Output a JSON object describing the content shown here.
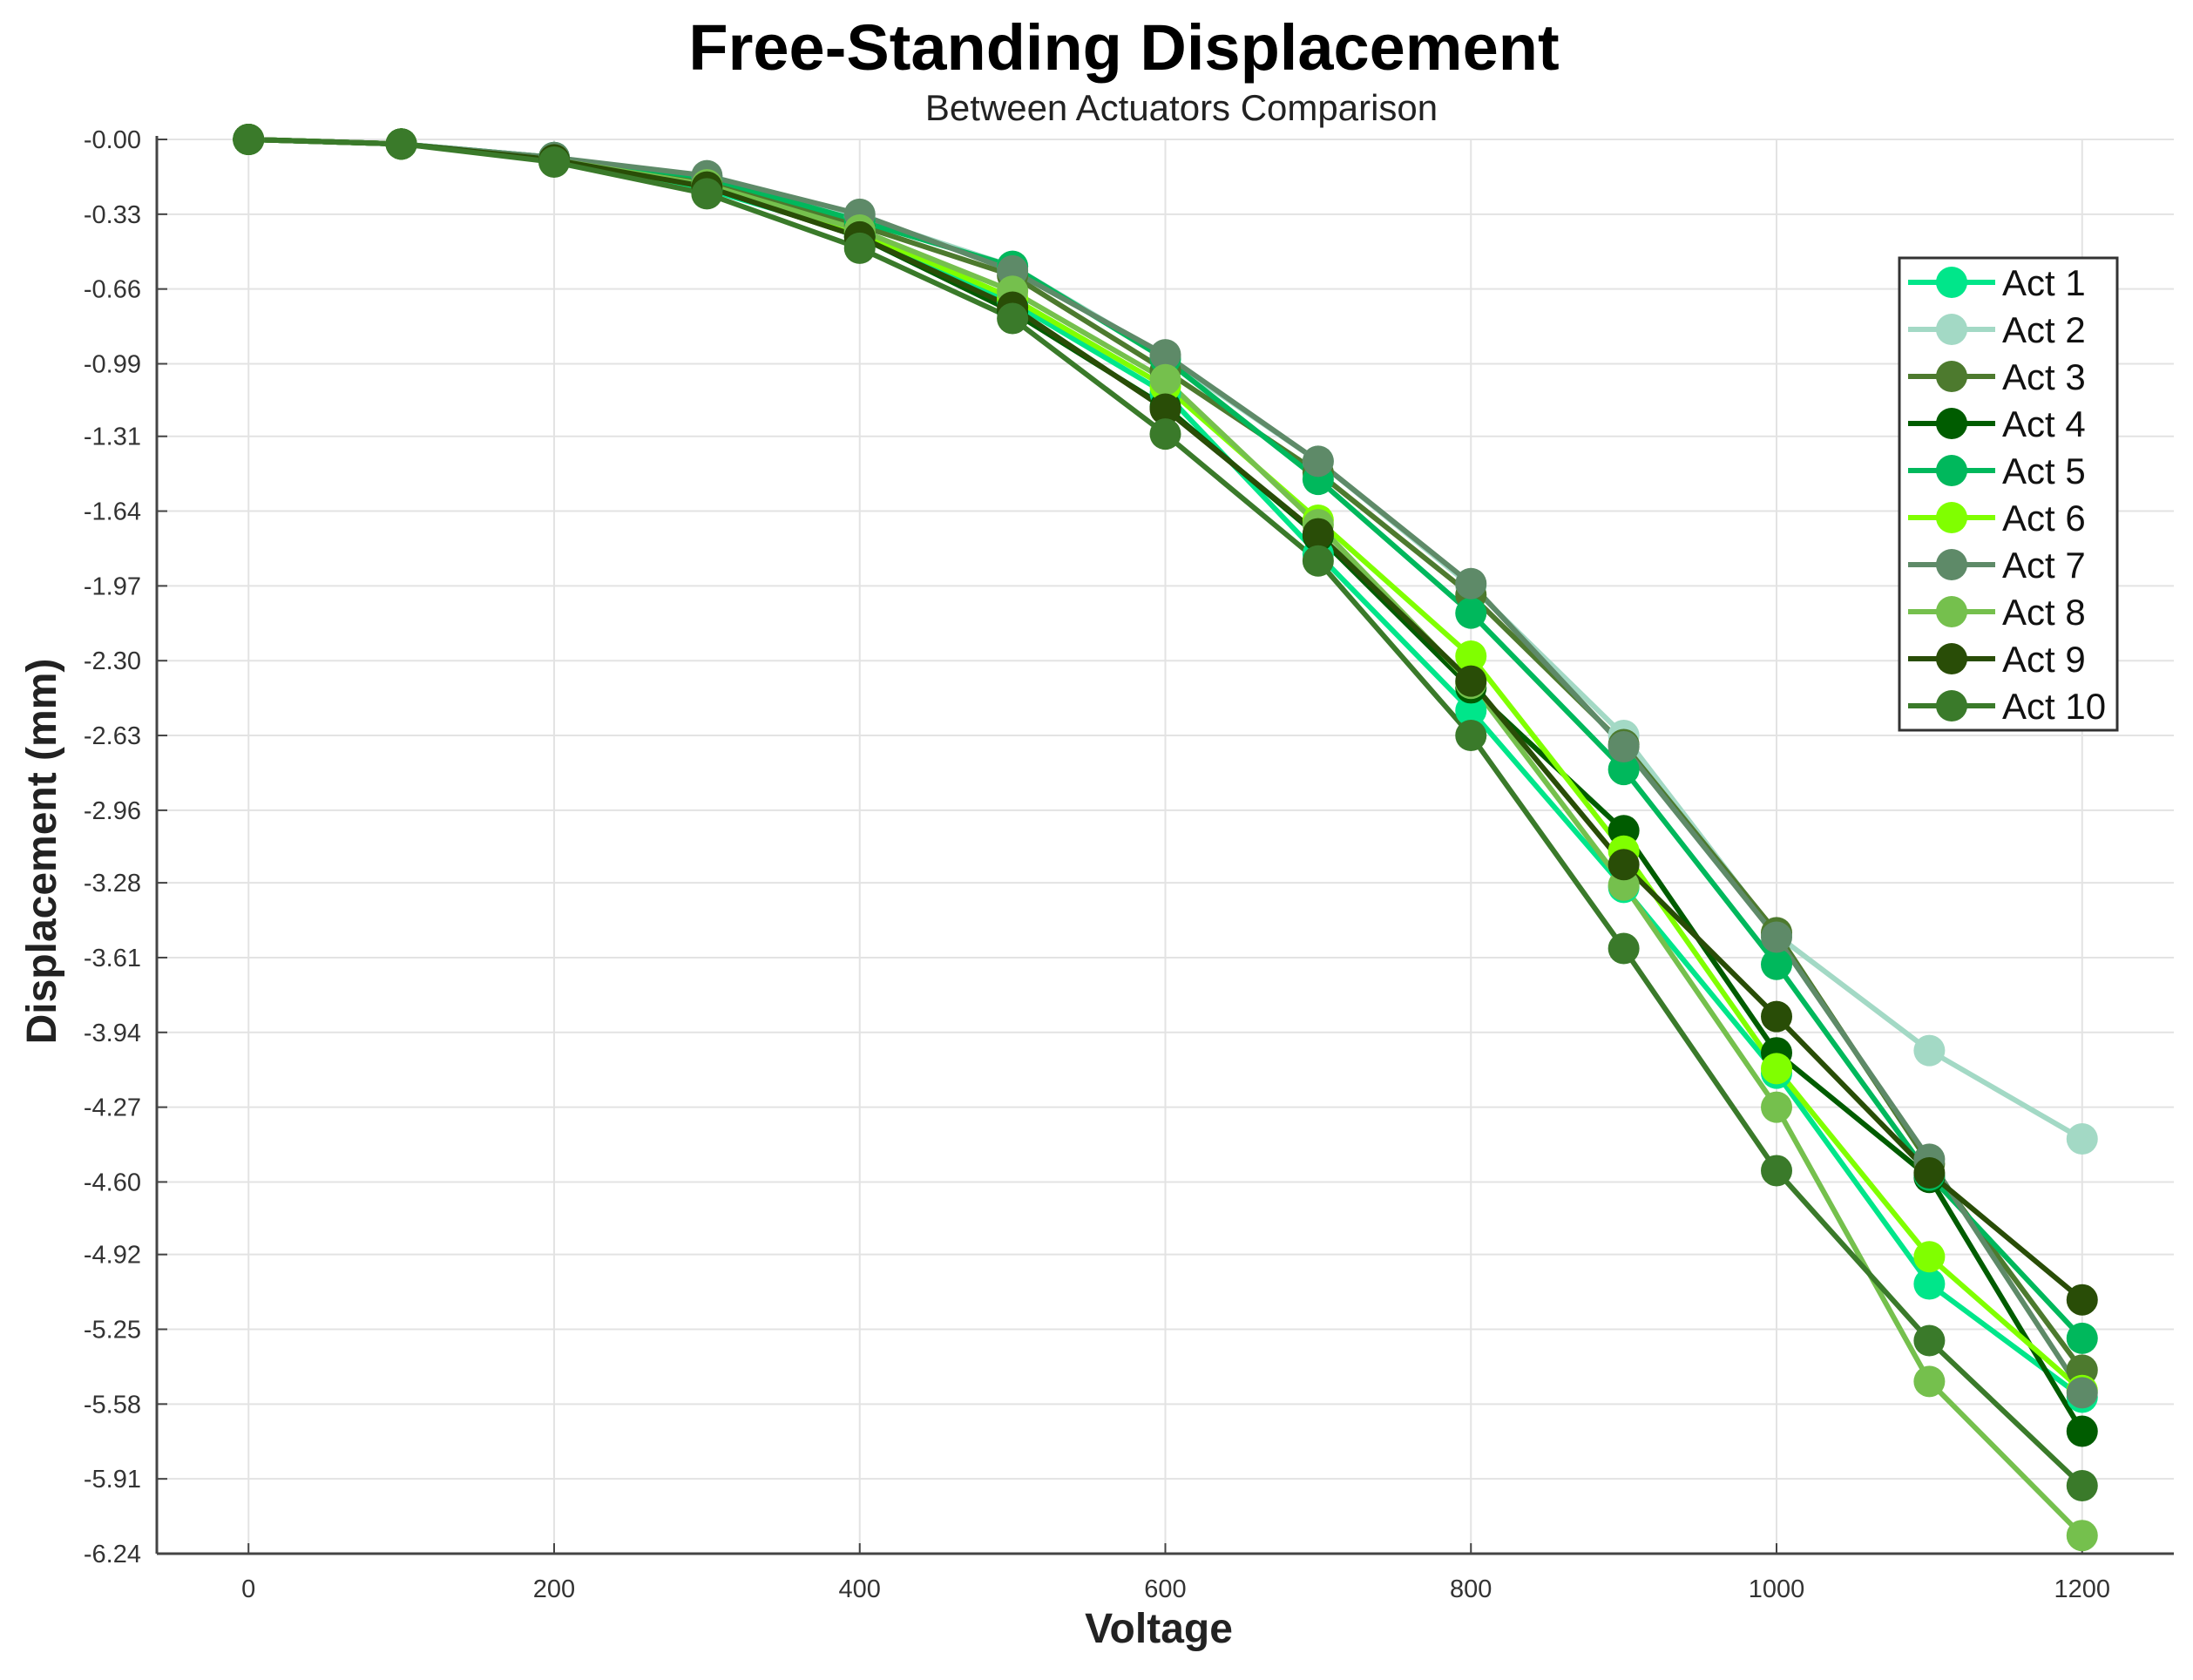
{
  "chart_data": {
    "type": "line",
    "title": "Free-Standing Displacement",
    "subtitle": "Between Actuators Comparison",
    "xlabel": "Voltage",
    "ylabel": "Displacement (mm)",
    "xlim": [
      -60,
      1260
    ],
    "ylim": [
      -6.24,
      0
    ],
    "xticks": [
      0,
      200,
      400,
      600,
      800,
      1000,
      1200
    ],
    "xtick_labels": [
      "0",
      "200",
      "400",
      "600",
      "800",
      "1000",
      "1200"
    ],
    "yticks": [
      -0.0,
      -0.33,
      -0.66,
      -0.99,
      -1.31,
      -1.64,
      -1.97,
      -2.3,
      -2.63,
      -2.96,
      -3.28,
      -3.61,
      -3.94,
      -4.27,
      -4.6,
      -4.92,
      -5.25,
      -5.58,
      -5.91,
      -6.24
    ],
    "ytick_labels": [
      "-0.00",
      "-0.33",
      "-0.66",
      "-0.99",
      "-1.31",
      "-1.64",
      "-1.97",
      "-2.30",
      "-2.63",
      "-2.96",
      "-3.28",
      "-3.61",
      "-3.94",
      "-4.27",
      "-4.60",
      "-4.92",
      "-5.25",
      "-5.58",
      "-5.91",
      "-6.24"
    ],
    "grid": true,
    "legend_position": "top-right",
    "x": [
      0,
      100,
      200,
      300,
      400,
      500,
      600,
      700,
      800,
      900,
      1000,
      1100,
      1200
    ],
    "series": [
      {
        "name": "Act 1",
        "color": "#00e68a",
        "values": [
          0,
          -0.02,
          -0.09,
          -0.22,
          -0.42,
          -0.72,
          -1.12,
          -1.83,
          -2.52,
          -3.3,
          -4.12,
          -5.05,
          -5.55
        ]
      },
      {
        "name": "Act 2",
        "color": "#a3d9c5",
        "values": [
          0,
          -0.02,
          -0.08,
          -0.17,
          -0.34,
          -0.56,
          -0.96,
          -1.42,
          -1.97,
          -2.63,
          -3.51,
          -4.02,
          -4.41
        ]
      },
      {
        "name": "Act 3",
        "color": "#4d7a2e",
        "values": [
          0,
          -0.02,
          -0.09,
          -0.19,
          -0.38,
          -0.6,
          -1.02,
          -1.47,
          -2.01,
          -2.67,
          -3.5,
          -4.52,
          -5.43
        ]
      },
      {
        "name": "Act 4",
        "color": "#005c00",
        "values": [
          0,
          -0.02,
          -0.09,
          -0.21,
          -0.43,
          -0.76,
          -1.18,
          -1.75,
          -2.42,
          -3.05,
          -4.03,
          -4.58,
          -5.7
        ]
      },
      {
        "name": "Act 5",
        "color": "#00b85c",
        "values": [
          0,
          -0.02,
          -0.08,
          -0.17,
          -0.36,
          -0.56,
          -0.97,
          -1.5,
          -2.09,
          -2.78,
          -3.64,
          -4.57,
          -5.29
        ]
      },
      {
        "name": "Act 6",
        "color": "#80ff00",
        "values": [
          0,
          -0.02,
          -0.09,
          -0.21,
          -0.41,
          -0.7,
          -1.09,
          -1.68,
          -2.28,
          -3.14,
          -4.1,
          -4.93,
          -5.52
        ]
      },
      {
        "name": "Act 7",
        "color": "#5e8a68",
        "values": [
          0,
          -0.02,
          -0.08,
          -0.16,
          -0.33,
          -0.58,
          -0.95,
          -1.42,
          -1.96,
          -2.68,
          -3.52,
          -4.5,
          -5.53
        ]
      },
      {
        "name": "Act 8",
        "color": "#75c04d",
        "values": [
          0,
          -0.02,
          -0.09,
          -0.2,
          -0.4,
          -0.67,
          -1.06,
          -1.7,
          -2.4,
          -3.29,
          -4.27,
          -5.48,
          -6.16
        ]
      },
      {
        "name": "Act 9",
        "color": "#294d07",
        "values": [
          0,
          -0.02,
          -0.09,
          -0.21,
          -0.43,
          -0.74,
          -1.19,
          -1.74,
          -2.39,
          -3.2,
          -3.87,
          -4.56,
          -5.12
        ]
      },
      {
        "name": "Act 10",
        "color": "#3a7a2a",
        "values": [
          0,
          -0.02,
          -0.1,
          -0.24,
          -0.48,
          -0.79,
          -1.3,
          -1.86,
          -2.63,
          -3.57,
          -4.55,
          -5.3,
          -5.94
        ]
      }
    ]
  }
}
